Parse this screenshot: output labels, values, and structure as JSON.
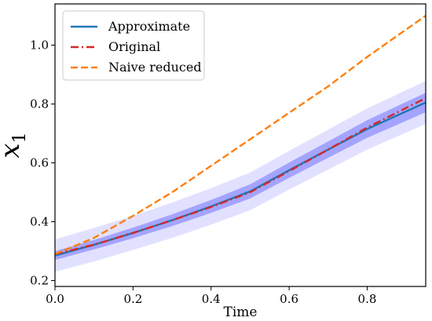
{
  "chart_data": {
    "type": "line",
    "title": "",
    "xlabel": "Time",
    "ylabel": "x_1",
    "xlim": [
      0.0,
      0.95
    ],
    "ylim": [
      0.18,
      1.14
    ],
    "xticks": [
      "0.0",
      "0.2",
      "0.4",
      "0.6",
      "0.8"
    ],
    "xtick_values": [
      0.0,
      0.2,
      0.4,
      0.6,
      0.8
    ],
    "yticks": [
      "0.2",
      "0.4",
      "0.6",
      "0.8",
      "1.0"
    ],
    "ytick_values": [
      0.2,
      0.4,
      0.6,
      0.8,
      1.0
    ],
    "grid": false,
    "legend_position": "top-left",
    "x": [
      0.0,
      0.1,
      0.2,
      0.3,
      0.4,
      0.5,
      0.6,
      0.7,
      0.8,
      0.95
    ],
    "series": [
      {
        "name": "Approximate",
        "style": "solid",
        "color": "#1f77b4",
        "values": [
          0.285,
          0.322,
          0.362,
          0.405,
          0.452,
          0.503,
          0.575,
          0.645,
          0.715,
          0.805
        ]
      },
      {
        "name": "Original",
        "style": "dashdot",
        "color": "#d62728",
        "values": [
          0.29,
          0.322,
          0.362,
          0.405,
          0.45,
          0.5,
          0.572,
          0.645,
          0.72,
          0.82
        ]
      },
      {
        "name": "Naive reduced",
        "style": "dashed",
        "color": "#ff7f0e",
        "values": [
          0.29,
          0.345,
          0.42,
          0.5,
          0.59,
          0.68,
          0.77,
          0.86,
          0.96,
          1.1
        ]
      }
    ],
    "bands": {
      "color": "#5b5bff",
      "inner_halfwidth": [
        0.015,
        0.016,
        0.018,
        0.02,
        0.022,
        0.024,
        0.026,
        0.028,
        0.03,
        0.033
      ],
      "outer_halfwidth": [
        0.055,
        0.057,
        0.058,
        0.06,
        0.062,
        0.064,
        0.066,
        0.068,
        0.07,
        0.073
      ]
    }
  }
}
